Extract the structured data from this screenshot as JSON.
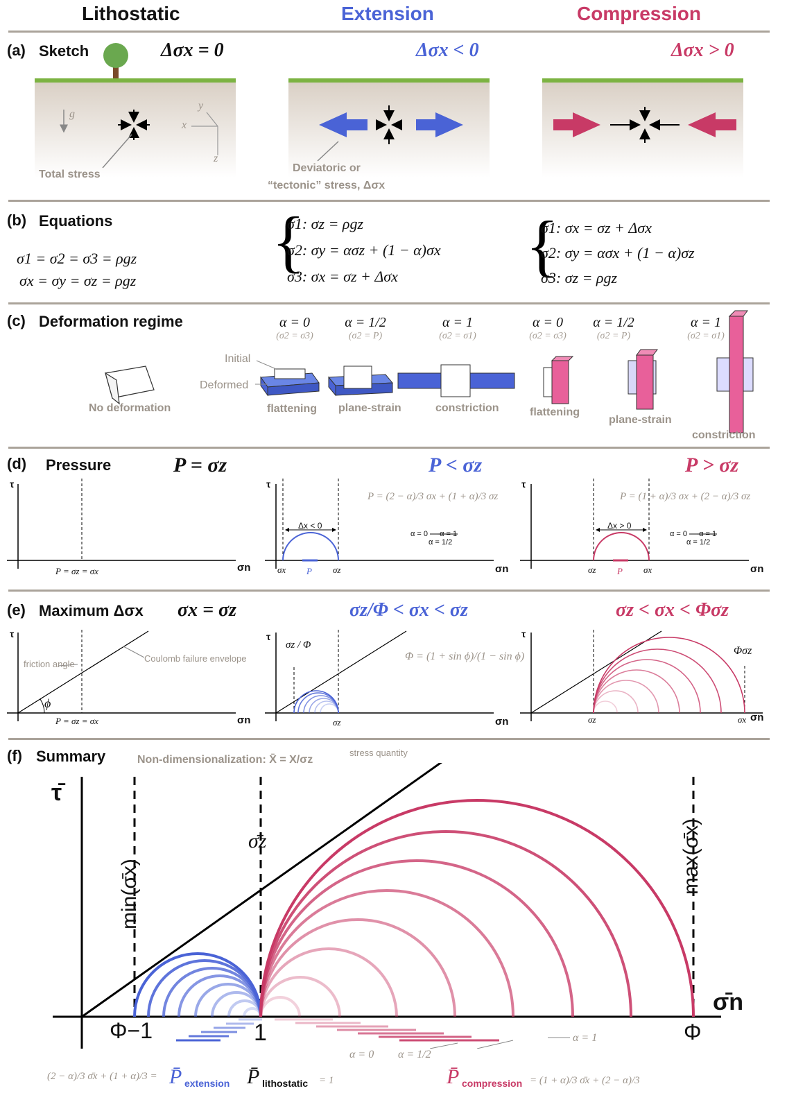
{
  "columns": {
    "left": "Lithostatic",
    "middle": "Extension",
    "right": "Compression"
  },
  "panel_a": {
    "label": "(a)",
    "title": "Sketch",
    "eq_left": "Δσx = 0",
    "eq_mid": "Δσx < 0",
    "eq_right": "Δσx > 0",
    "total_stress": "Total stress",
    "deviatoric_1": "Deviatoric or",
    "deviatoric_2": "“tectonic” stress, Δσx",
    "g": "g",
    "axis_x": "x",
    "axis_y": "y",
    "axis_z": "z"
  },
  "panel_b": {
    "label": "(b)",
    "title": "Equations",
    "left1": "σ1 = σ2 = σ3 = ρgz",
    "left2": "σx = σy = σz = ρgz",
    "mid1": "σ1: σz = ρgz",
    "mid2": "σ2: σy = ασz + (1 − α)σx",
    "mid3": "σ3: σx = σz + Δσx",
    "right1": "σ1: σx = σz + Δσx",
    "right2": "σ2: σy = ασx + (1 − α)σz",
    "right3": "σ3: σz = ρgz"
  },
  "panel_c": {
    "label": "(c)",
    "title": "Deformation regime",
    "no_def": "No deformation",
    "initial": "Initial",
    "deformed": "Deformed",
    "regimes": [
      {
        "alpha": "α = 0",
        "cond": "(σ2 = σ3)",
        "name": "flattening"
      },
      {
        "alpha": "α = 1/2",
        "cond": "(σ2 = P)",
        "name": "plane-strain"
      },
      {
        "alpha": "α = 1",
        "cond": "(σ2 = σ1)",
        "name": "constriction"
      },
      {
        "alpha": "α = 0",
        "cond": "(σ2 = σ3)",
        "name": "flattening"
      },
      {
        "alpha": "α = 1/2",
        "cond": "(σ2 = P)",
        "name": "plane-strain"
      },
      {
        "alpha": "α = 1",
        "cond": "(σ2 = σ1)",
        "name": "constriction"
      }
    ]
  },
  "panel_d": {
    "label": "(d)",
    "title": "Pressure",
    "eq_left": "P = σz",
    "eq_mid": "P < σz",
    "eq_right": "P > σz",
    "tau": "τ",
    "sigma_n": "σn",
    "p_left": "P = σz = σx",
    "mid_formula": "P = (2 − α)/3 σx + (1 + α)/3 σz",
    "right_formula": "P = (1 + α)/3 σx + (2 − α)/3 σz",
    "dx_neg": "Δx < 0",
    "dx_pos": "Δx > 0",
    "alpha_scale": "α = 0 — α = 1",
    "alpha_half": "α = 1/2",
    "p": "P",
    "sx": "σx",
    "sz": "σz"
  },
  "panel_e": {
    "label": "(e)",
    "title": "Maximum Δσx",
    "eq_left": "σx = σz",
    "eq_mid": "σz/Φ < σx < σz",
    "eq_right": "σz < σx < Φσz",
    "friction": "friction angle",
    "coulomb": "Coulomb failure envelope",
    "phi": "ϕ",
    "p_left": "P = σz = σx",
    "phi_formula": "Φ = (1 + sin ϕ)/(1 − sin ϕ)",
    "sz_over_phi": "σz / Φ",
    "phi_sz": "Φσz",
    "sz": "σz",
    "sx": "σx"
  },
  "panel_f": {
    "label": "(f)",
    "title": "Summary",
    "nondim": "Non-dimensionalization: X̄ = X/σz",
    "stress_quantity": "stress quantity",
    "tau": "τ̄",
    "sigma_n": "σ̄n",
    "min": "min(σ̄x)",
    "max": "max(σ̄x)",
    "sz": "σ̄z",
    "phi_inv": "Φ−1",
    "one": "1",
    "phi": "Φ",
    "alpha0": "α = 0",
    "alpha_half": "α = 1/2",
    "alpha1": "α = 1",
    "p_ext_formula": "(2 − α)/3 σ̄x + (1 + α)/3 =",
    "p_ext": "P̄",
    "p_ext_sub": "extension",
    "p_lith": "P̄",
    "p_lith_sub": "lithostatic",
    "p_lith_eq": "= 1",
    "p_comp": "P̄",
    "p_comp_sub": "compression",
    "p_comp_formula": "= (1 + α)/3 σ̄x + (2 − α)/3"
  },
  "colors": {
    "blue": "#4a63d6",
    "red": "#c83a66",
    "gray": "#9b938a",
    "rule": "#aaa39a",
    "ground": "#7cb342",
    "soil": "#d9cfc4"
  }
}
